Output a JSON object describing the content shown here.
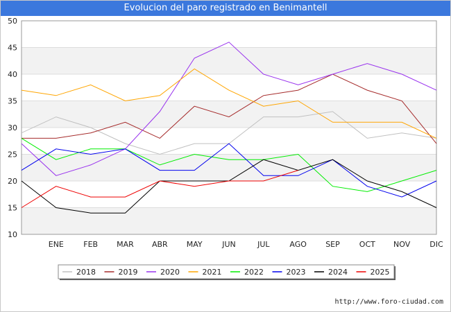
{
  "title": "Evolucion del paro registrado en Benimantell",
  "footer": "http://www.foro-ciudad.com",
  "chart_data": {
    "type": "line",
    "title": "Evolucion del paro registrado en Benimantell",
    "xlabel": "",
    "ylabel": "",
    "categories": [
      "",
      "ENE",
      "FEB",
      "MAR",
      "ABR",
      "MAY",
      "JUN",
      "JUL",
      "AGO",
      "SEP",
      "OCT",
      "NOV",
      "DIC"
    ],
    "ylim": [
      10,
      50
    ],
    "yticks": [
      10,
      15,
      20,
      25,
      30,
      35,
      40,
      45,
      50
    ],
    "grid": "alternating horizontal bands",
    "legend_position": "bottom",
    "series": [
      {
        "name": "2018",
        "color": "#c0c0c0",
        "values": [
          29,
          32,
          30,
          27,
          25,
          27,
          27,
          32,
          32,
          33,
          28,
          29,
          28
        ]
      },
      {
        "name": "2019",
        "color": "#a52a2a",
        "values": [
          28,
          28,
          29,
          31,
          28,
          34,
          32,
          36,
          37,
          40,
          37,
          35,
          27
        ]
      },
      {
        "name": "2020",
        "color": "#9932ee",
        "values": [
          27,
          21,
          23,
          26,
          33,
          43,
          46,
          40,
          38,
          40,
          42,
          40,
          37
        ]
      },
      {
        "name": "2021",
        "color": "#ffa500",
        "values": [
          37,
          36,
          38,
          35,
          36,
          41,
          37,
          34,
          35,
          31,
          31,
          31,
          28
        ]
      },
      {
        "name": "2022",
        "color": "#00ee00",
        "values": [
          28,
          24,
          26,
          26,
          23,
          25,
          24,
          24,
          25,
          19,
          18,
          20,
          22
        ]
      },
      {
        "name": "2023",
        "color": "#0000ee",
        "values": [
          22,
          26,
          25,
          26,
          22,
          22,
          27,
          21,
          21,
          24,
          19,
          17,
          20
        ]
      },
      {
        "name": "2024",
        "color": "#000000",
        "values": [
          20,
          15,
          14,
          14,
          20,
          20,
          20,
          24,
          22,
          24,
          20,
          18,
          15
        ]
      },
      {
        "name": "2025",
        "color": "#ee0000",
        "values": [
          15,
          19,
          17,
          17,
          20,
          19,
          20,
          20,
          22,
          null,
          null,
          null,
          null
        ]
      }
    ]
  }
}
